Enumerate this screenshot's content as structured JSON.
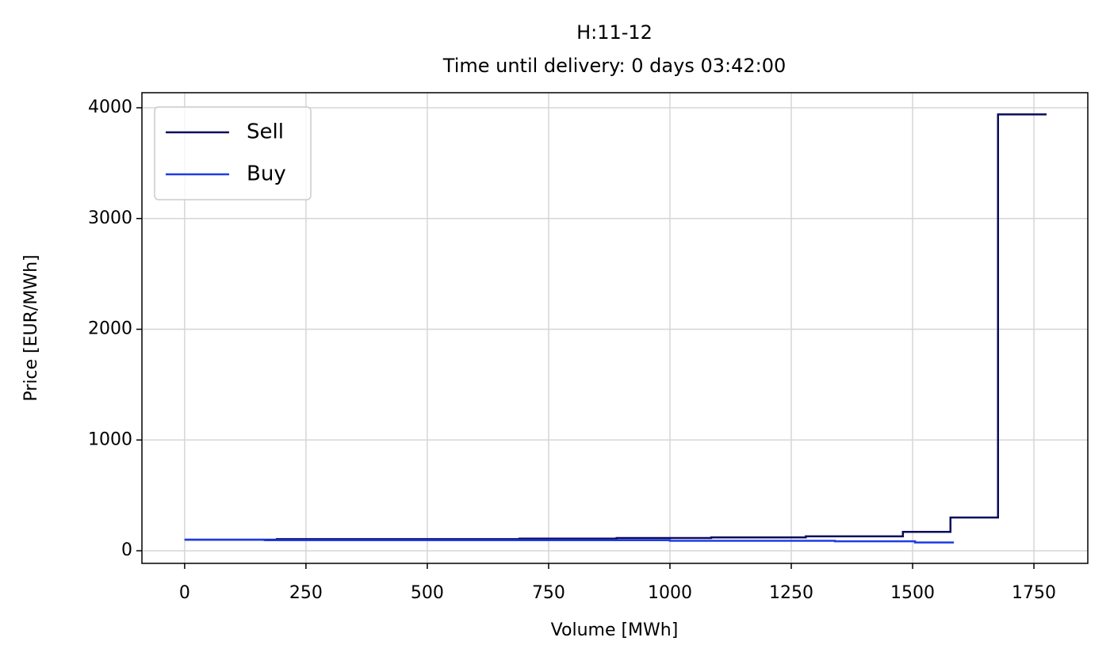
{
  "chart_data": {
    "type": "step",
    "title": "H:11-12",
    "subtitle": "Time until delivery: 0 days 03:42:00",
    "x_label": "Volume [MWh]",
    "y_label": "Price [EUR/MWh]",
    "series": [
      {
        "name": "Sell",
        "color": "#0b0b5c",
        "x": [
          0,
          190,
          690,
          890,
          1085,
          1280,
          1480,
          1578,
          1676,
          1776
        ],
        "values": [
          100,
          105,
          110,
          115,
          120,
          130,
          170,
          300,
          3940,
          3940
        ]
      },
      {
        "name": "Buy",
        "color": "#1f3ce6",
        "x": [
          0,
          165,
          1000,
          1340,
          1505,
          1585
        ],
        "values": [
          100,
          95,
          90,
          85,
          75,
          75
        ]
      }
    ],
    "xlim": [
      -88,
      1861
    ],
    "ylim": [
      -114,
      4136
    ],
    "xticks": [
      0,
      250,
      500,
      750,
      1000,
      1250,
      1500,
      1750
    ],
    "yticks": [
      0,
      1000,
      2000,
      3000,
      4000
    ],
    "grid": true,
    "legend": "upper-left"
  }
}
